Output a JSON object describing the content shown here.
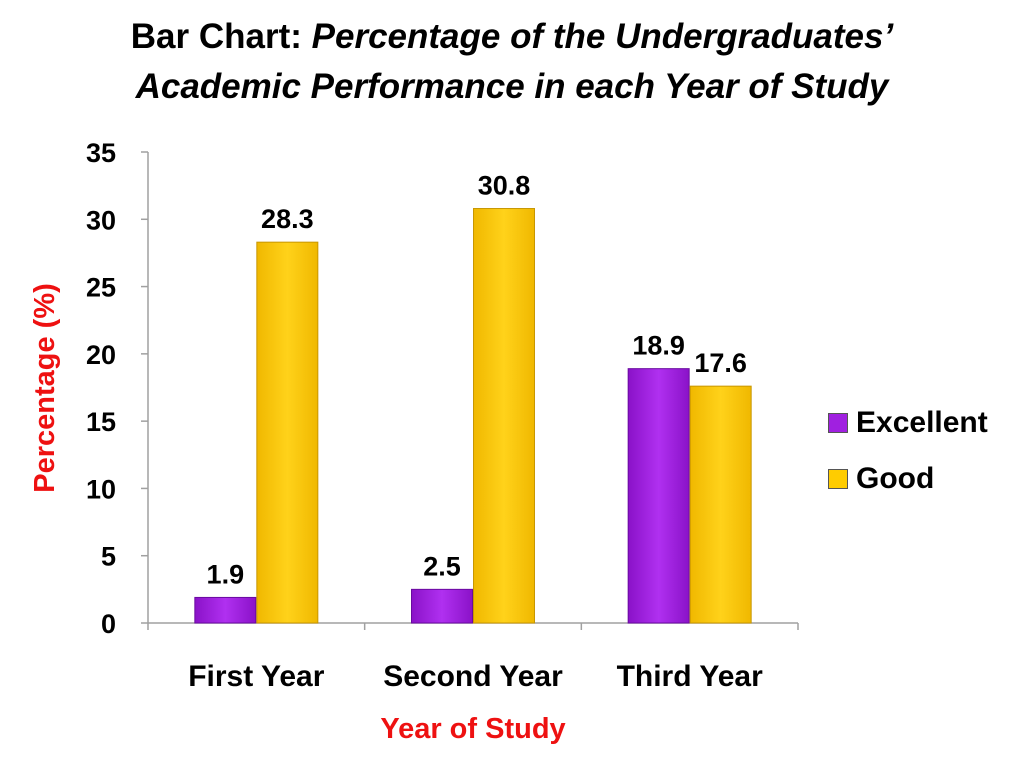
{
  "chart_title": {
    "prefix": "Bar Chart: ",
    "line1": "Percentage of the Undergraduates’",
    "line2": "Academic Performance in each Year of Study"
  },
  "colors": {
    "excellent": "#a020e0",
    "good": "#ffcc00",
    "axis_title": "#ee1111",
    "axis_line": "#a0a0a0"
  },
  "chart_data": {
    "type": "bar",
    "categories": [
      "First Year",
      "Second Year",
      "Third Year"
    ],
    "series": [
      {
        "name": "Excellent",
        "values": [
          1.9,
          2.5,
          18.9
        ],
        "labels": [
          "1.9",
          "2.5",
          "18.9"
        ]
      },
      {
        "name": "Good",
        "values": [
          28.3,
          30.8,
          17.6
        ],
        "labels": [
          "28.3",
          "30.8",
          "17.6"
        ]
      }
    ],
    "xlabel": "Year of Study",
    "ylabel": "Percentage (%)",
    "ylim": [
      0,
      35
    ],
    "yticks": [
      "0",
      "5",
      "10",
      "15",
      "20",
      "25",
      "30",
      "35"
    ],
    "grid": false,
    "legend_position": "right"
  }
}
